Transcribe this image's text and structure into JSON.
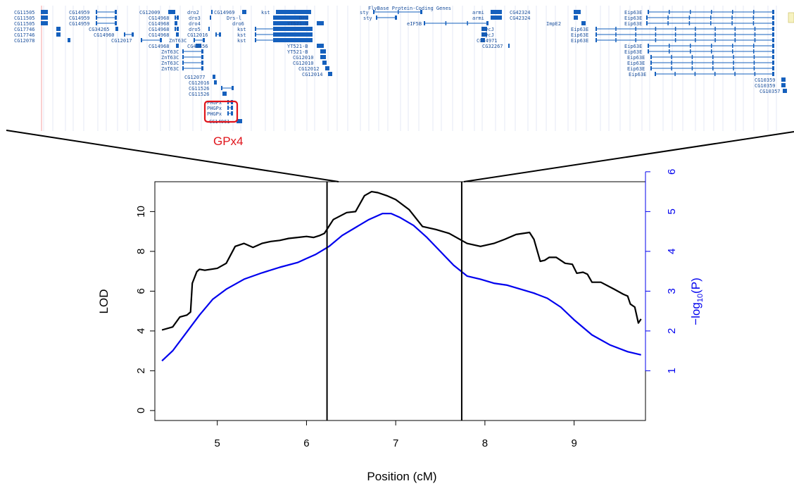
{
  "browser": {
    "track_title": "FlyBase Protein-Coding Genes",
    "accent_color": "#1560bd",
    "highlight_color": "#e0141b",
    "gene_labels": [
      {
        "name": "CG11505",
        "track": "left"
      },
      {
        "name": "CG11505",
        "track": "left"
      },
      {
        "name": "CG11505",
        "track": "left"
      },
      {
        "name": "CG17746",
        "track": "left"
      },
      {
        "name": "CG17746",
        "track": "left"
      },
      {
        "name": "CG12078",
        "track": "left"
      },
      {
        "name": "CG14959",
        "track": "left"
      },
      {
        "name": "CG14959",
        "track": "left"
      },
      {
        "name": "CG14959",
        "track": "left"
      },
      {
        "name": "CG34265",
        "track": "left"
      },
      {
        "name": "CG14960",
        "track": "left"
      },
      {
        "name": "CG12017",
        "track": "left"
      },
      {
        "name": "CG12009",
        "track": "mid"
      },
      {
        "name": "CG14968",
        "track": "mid"
      },
      {
        "name": "CG14968",
        "track": "mid"
      },
      {
        "name": "CG14968",
        "track": "mid"
      },
      {
        "name": "CG14968",
        "track": "mid"
      },
      {
        "name": "ZnT63C",
        "track": "mid"
      },
      {
        "name": "CG14968",
        "track": "mid"
      },
      {
        "name": "dro2",
        "track": "mid"
      },
      {
        "name": "dro3",
        "track": "mid"
      },
      {
        "name": "dro4",
        "track": "mid"
      },
      {
        "name": "dro5",
        "track": "mid"
      },
      {
        "name": "CG12016",
        "track": "mid"
      },
      {
        "name": "CG42456",
        "track": "mid"
      },
      {
        "name": "ZnT63C",
        "track": "mid"
      },
      {
        "name": "ZnT63C",
        "track": "mid"
      },
      {
        "name": "ZnT63C",
        "track": "mid"
      },
      {
        "name": "ZnT63C",
        "track": "mid"
      },
      {
        "name": "CG12077",
        "track": "mid"
      },
      {
        "name": "CG12016",
        "track": "mid"
      },
      {
        "name": "CG11526",
        "track": "mid"
      },
      {
        "name": "CG11526",
        "track": "mid"
      },
      {
        "name": "PHGPx",
        "track": "mid"
      },
      {
        "name": "PHGPx",
        "track": "mid"
      },
      {
        "name": "PHGPx",
        "track": "mid"
      },
      {
        "name": "CG14961",
        "track": "mid"
      },
      {
        "name": "CG14969",
        "track": "mid"
      },
      {
        "name": "Drs-l",
        "track": "mid"
      },
      {
        "name": "dro6",
        "track": "mid"
      },
      {
        "name": "kst",
        "track": "mid"
      },
      {
        "name": "kst",
        "track": "mid"
      },
      {
        "name": "kst",
        "track": "mid"
      },
      {
        "name": "kst",
        "track": "mid"
      },
      {
        "name": "Drs",
        "track": "mid"
      },
      {
        "name": "YT521-B",
        "track": "mid"
      },
      {
        "name": "YT521-B",
        "track": "mid"
      },
      {
        "name": "YT521-B",
        "track": "mid"
      },
      {
        "name": "CG12010",
        "track": "mid"
      },
      {
        "name": "CG12010",
        "track": "mid"
      },
      {
        "name": "CG12012",
        "track": "mid"
      },
      {
        "name": "CG12014",
        "track": "mid"
      },
      {
        "name": "sty",
        "track": "right"
      },
      {
        "name": "sty",
        "track": "right"
      },
      {
        "name": "eIF5B",
        "track": "right"
      },
      {
        "name": "armi",
        "track": "right"
      },
      {
        "name": "armi",
        "track": "right"
      },
      {
        "name": "CycJ",
        "track": "right"
      },
      {
        "name": "CycJ",
        "track": "right"
      },
      {
        "name": "CG14971",
        "track": "right"
      },
      {
        "name": "CG32267",
        "track": "right"
      },
      {
        "name": "CG42324",
        "track": "right"
      },
      {
        "name": "CG42324",
        "track": "right"
      },
      {
        "name": "ImpE2",
        "track": "right"
      },
      {
        "name": "Eip63E",
        "track": "right"
      },
      {
        "name": "Eip63E",
        "track": "right"
      },
      {
        "name": "Eip63E",
        "track": "right"
      },
      {
        "name": "Eip63E",
        "track": "right"
      },
      {
        "name": "Eip63E",
        "track": "right"
      },
      {
        "name": "Eip63E",
        "track": "right"
      },
      {
        "name": "Eip63E",
        "track": "right"
      },
      {
        "name": "Eip63E",
        "track": "right"
      },
      {
        "name": "Eip63E",
        "track": "right"
      },
      {
        "name": "Eip63E",
        "track": "right"
      },
      {
        "name": "Eip63E",
        "track": "right"
      },
      {
        "name": "Eip63E",
        "track": "right"
      },
      {
        "name": "CG10359",
        "track": "right"
      },
      {
        "name": "CG10359",
        "track": "right"
      },
      {
        "name": "CG10357",
        "track": "right"
      }
    ],
    "highlight_label": "GPx4"
  },
  "chart_data": {
    "type": "line",
    "title": "",
    "xlabel": "Position (cM)",
    "ylabel": "LOD",
    "y2label_base": "−log",
    "y2label_sub": "10",
    "y2label_rest": "(P)",
    "xlim": [
      4.3,
      9.8
    ],
    "ylim": [
      -0.5,
      11.5
    ],
    "y2lim": [
      -0.25,
      5.75
    ],
    "xticks": [
      5,
      6,
      7,
      8,
      9
    ],
    "yticks": [
      0,
      2,
      4,
      6,
      8,
      10
    ],
    "y2ticks": [
      1,
      2,
      3,
      4,
      5,
      6
    ],
    "grid": false,
    "legend": "none",
    "vlines": [
      6.23,
      7.74
    ],
    "series": [
      {
        "axis": "left",
        "color": "#000000",
        "x": [
          4.38,
          4.5,
          4.58,
          4.66,
          4.7,
          4.72,
          4.77,
          4.8,
          4.86,
          5.0,
          5.1,
          5.2,
          5.3,
          5.4,
          5.5,
          5.6,
          5.7,
          5.8,
          5.9,
          6.0,
          6.08,
          6.15,
          6.2,
          6.3,
          6.45,
          6.55,
          6.65,
          6.73,
          6.8,
          6.9,
          7.0,
          7.15,
          7.3,
          7.45,
          7.6,
          7.8,
          7.95,
          8.1,
          8.22,
          8.35,
          8.5,
          8.55,
          8.62,
          8.67,
          8.72,
          8.8,
          8.9,
          8.98,
          9.03,
          9.1,
          9.15,
          9.2,
          9.3,
          9.45,
          9.55,
          9.6,
          9.63,
          9.68,
          9.72,
          9.75
        ],
        "values": [
          4.05,
          4.2,
          4.7,
          4.8,
          4.95,
          6.4,
          6.98,
          7.1,
          7.05,
          7.15,
          7.4,
          8.25,
          8.4,
          8.2,
          8.4,
          8.5,
          8.55,
          8.65,
          8.7,
          8.75,
          8.7,
          8.8,
          8.9,
          9.6,
          9.95,
          10.0,
          10.8,
          11.0,
          10.95,
          10.8,
          10.6,
          10.1,
          9.25,
          9.1,
          8.9,
          8.4,
          8.25,
          8.4,
          8.6,
          8.85,
          8.95,
          8.6,
          7.5,
          7.55,
          7.7,
          7.7,
          7.4,
          7.35,
          6.9,
          6.95,
          6.85,
          6.45,
          6.45,
          6.1,
          5.85,
          5.75,
          5.35,
          5.2,
          4.4,
          4.6
        ]
      },
      {
        "axis": "right",
        "color": "#0000ee",
        "x": [
          4.38,
          4.5,
          4.65,
          4.8,
          4.95,
          5.1,
          5.3,
          5.5,
          5.7,
          5.9,
          6.0,
          6.1,
          6.25,
          6.4,
          6.55,
          6.7,
          6.85,
          6.95,
          7.05,
          7.2,
          7.35,
          7.5,
          7.65,
          7.8,
          7.95,
          8.1,
          8.25,
          8.4,
          8.55,
          8.7,
          8.85,
          9.0,
          9.2,
          9.4,
          9.6,
          9.75
        ],
        "values": [
          1.25,
          1.5,
          1.95,
          2.4,
          2.8,
          3.05,
          3.3,
          3.46,
          3.6,
          3.72,
          3.82,
          3.92,
          4.12,
          4.4,
          4.6,
          4.8,
          4.95,
          4.95,
          4.85,
          4.65,
          4.35,
          4.0,
          3.65,
          3.38,
          3.3,
          3.2,
          3.15,
          3.05,
          2.95,
          2.82,
          2.6,
          2.28,
          1.9,
          1.65,
          1.48,
          1.4
        ]
      }
    ]
  }
}
